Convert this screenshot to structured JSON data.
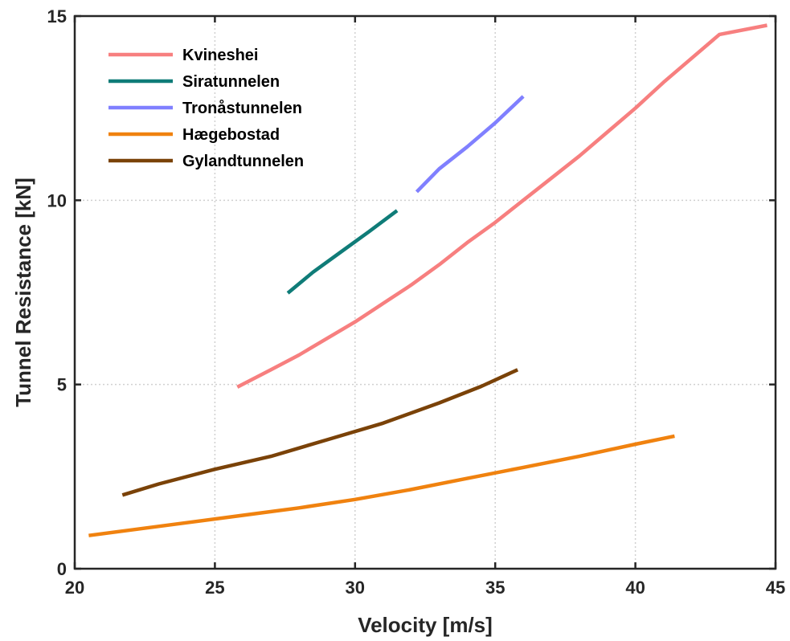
{
  "chart_data": {
    "type": "line",
    "xlabel": "Velocity [m/s]",
    "ylabel": "Tunnel Resistance [kN]",
    "xlim": [
      20,
      45
    ],
    "ylim": [
      0,
      15
    ],
    "xticks": [
      20,
      25,
      30,
      35,
      40,
      45
    ],
    "yticks": [
      0,
      5,
      10,
      15
    ],
    "grid": true,
    "legend_position": "top-left",
    "series": [
      {
        "name": "Kvineshei",
        "color": "#f77f7f",
        "points": [
          [
            25.8,
            4.93
          ],
          [
            27,
            5.4
          ],
          [
            28,
            5.8
          ],
          [
            29,
            6.25
          ],
          [
            30,
            6.7
          ],
          [
            31,
            7.2
          ],
          [
            32,
            7.7
          ],
          [
            33,
            8.25
          ],
          [
            34,
            8.85
          ],
          [
            35,
            9.4
          ],
          [
            36,
            10.0
          ],
          [
            37,
            10.6
          ],
          [
            38,
            11.2
          ],
          [
            39,
            11.85
          ],
          [
            40,
            12.5
          ],
          [
            41,
            13.2
          ],
          [
            42,
            13.85
          ],
          [
            43,
            14.5
          ],
          [
            44.7,
            14.75
          ]
        ]
      },
      {
        "name": "Siratunnelen",
        "color": "#0f7c78",
        "points": [
          [
            27.6,
            7.48
          ],
          [
            28.5,
            8.05
          ],
          [
            29.5,
            8.6
          ],
          [
            30.5,
            9.15
          ],
          [
            31.5,
            9.72
          ]
        ]
      },
      {
        "name": "Tronåstunnelen",
        "color": "#8080ff",
        "points": [
          [
            32.2,
            10.23
          ],
          [
            33,
            10.85
          ],
          [
            34,
            11.45
          ],
          [
            35,
            12.1
          ],
          [
            36.0,
            12.82
          ]
        ]
      },
      {
        "name": "Hægebostad",
        "color": "#f0820f",
        "points": [
          [
            20.5,
            0.9
          ],
          [
            22,
            1.05
          ],
          [
            24,
            1.25
          ],
          [
            26,
            1.45
          ],
          [
            28,
            1.65
          ],
          [
            30,
            1.88
          ],
          [
            32,
            2.15
          ],
          [
            34,
            2.45
          ],
          [
            36,
            2.75
          ],
          [
            38,
            3.05
          ],
          [
            40,
            3.38
          ],
          [
            41.4,
            3.6
          ]
        ]
      },
      {
        "name": "Gylandtunnelen",
        "color": "#7a4208",
        "points": [
          [
            21.7,
            2.0
          ],
          [
            23,
            2.3
          ],
          [
            25,
            2.7
          ],
          [
            27,
            3.05
          ],
          [
            29,
            3.5
          ],
          [
            31,
            3.95
          ],
          [
            33,
            4.5
          ],
          [
            34.5,
            4.95
          ],
          [
            35.8,
            5.4
          ]
        ]
      }
    ]
  }
}
